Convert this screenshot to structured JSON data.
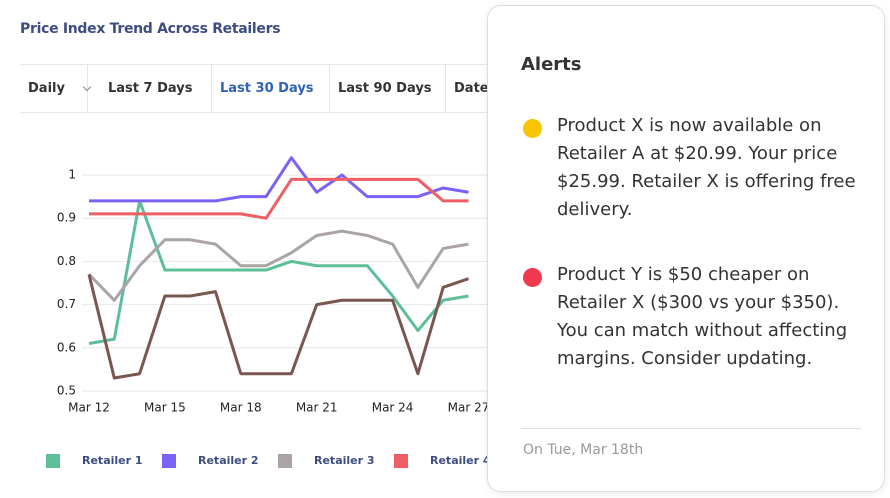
{
  "header": {
    "title": "Price Index Trend Across Retailers"
  },
  "tabs": [
    "Daily",
    "Last 7 Days",
    "Last 30 Days",
    "Last 90 Days",
    "Date"
  ],
  "active_tab": 2,
  "chart_data": {
    "type": "line",
    "categories": [
      "Mar 12",
      null,
      null,
      "Mar 15",
      null,
      null,
      "Mar 18",
      null,
      null,
      "Mar 21",
      null,
      null,
      "Mar 24",
      null,
      null,
      "Mar 27"
    ],
    "ylim": [
      0.5,
      1.05
    ],
    "yticks": [
      0.5,
      0.6,
      0.7,
      0.8,
      0.9,
      1
    ],
    "grid": true,
    "series": [
      {
        "name": "Retailer 1",
        "color": "#5dbf97",
        "values": [
          0.61,
          0.62,
          0.94,
          0.78,
          0.78,
          0.78,
          0.78,
          0.78,
          0.8,
          0.79,
          0.79,
          0.79,
          0.72,
          0.64,
          0.71,
          0.72
        ]
      },
      {
        "name": "Retailer 2",
        "color": "#7b61f5",
        "values": [
          0.94,
          0.94,
          0.94,
          0.94,
          0.94,
          0.94,
          0.95,
          0.95,
          1.04,
          0.96,
          1.0,
          0.95,
          0.95,
          0.95,
          0.97,
          0.96
        ]
      },
      {
        "name": "Retailer 3",
        "color": "#aaa4a4",
        "values": [
          0.77,
          0.71,
          0.79,
          0.85,
          0.85,
          0.84,
          0.79,
          0.79,
          0.82,
          0.86,
          0.87,
          0.86,
          0.84,
          0.74,
          0.83,
          0.84
        ]
      },
      {
        "name": "Retailer 4",
        "color": "#ee5e63",
        "values": [
          0.91,
          0.91,
          0.91,
          0.91,
          0.91,
          0.91,
          0.91,
          0.9,
          0.99,
          0.99,
          0.99,
          0.99,
          0.99,
          0.99,
          0.94,
          0.94
        ]
      },
      {
        "color": "#7a5650",
        "values": [
          0.77,
          0.53,
          0.54,
          0.72,
          0.72,
          0.73,
          0.54,
          0.54,
          0.54,
          0.7,
          0.71,
          0.71,
          0.71,
          0.54,
          0.74,
          0.76
        ]
      }
    ]
  },
  "alerts": {
    "title": "Alerts",
    "items": [
      {
        "text": "Product X is now available on Retailer A at $20.99. Your price $25.99. Retailer X is offering free delivery.",
        "color": "#f7c600"
      },
      {
        "text": "Product Y is $50 cheaper on Retailer X ($300 vs your $350). You can match without affecting margins. Consider updating.",
        "color": "#f0384f"
      }
    ],
    "footer": "On Tue, Mar 18th"
  }
}
